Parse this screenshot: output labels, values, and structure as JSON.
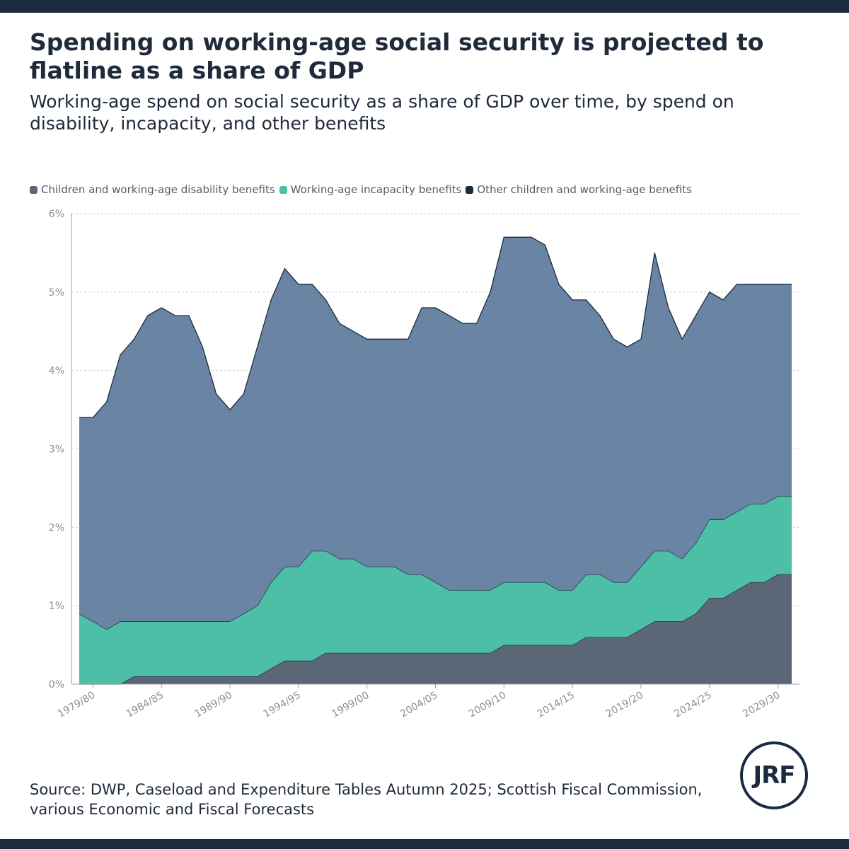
{
  "title": "Spending on working-age social security is projected to flatline as a share of GDP",
  "subtitle": "Working-age spend on social security as a share of GDP over time, by spend on disability, incapacity, and other benefits",
  "source": "Source: DWP, Caseload and Expenditure Tables Autumn 2025; Scottish Fiscal Commission, various Economic and Fiscal Forecasts",
  "logo_text": "JRF",
  "colors": {
    "frame": "#1b2a3f",
    "disability": "#5b6776",
    "incapacity": "#4dbfa6",
    "other": "#6a84a3"
  },
  "chart_data": {
    "type": "area",
    "stacked": true,
    "title": "Working-age spend on social security as a share of GDP over time",
    "xlabel": "",
    "ylabel": "",
    "ylim": [
      0,
      6
    ],
    "yticks": [
      0,
      1,
      2,
      3,
      4,
      5,
      6
    ],
    "ytick_suffix": "%",
    "grid": true,
    "legend_position": "top-left",
    "categories": [
      "1978/79",
      "1979/80",
      "1980/81",
      "1981/82",
      "1982/83",
      "1983/84",
      "1984/85",
      "1985/86",
      "1986/87",
      "1987/88",
      "1988/89",
      "1989/90",
      "1990/91",
      "1991/92",
      "1992/93",
      "1993/94",
      "1994/95",
      "1995/96",
      "1996/97",
      "1997/98",
      "1998/99",
      "1999/00",
      "2000/01",
      "2001/02",
      "2002/03",
      "2003/04",
      "2004/05",
      "2005/06",
      "2006/07",
      "2007/08",
      "2008/09",
      "2009/10",
      "2010/11",
      "2011/12",
      "2012/13",
      "2013/14",
      "2014/15",
      "2015/16",
      "2016/17",
      "2017/18",
      "2018/19",
      "2019/20",
      "2020/21",
      "2021/22",
      "2022/23",
      "2023/24",
      "2024/25",
      "2025/26",
      "2026/27",
      "2027/28",
      "2028/29",
      "2029/30",
      "2030/31"
    ],
    "xtick_labels": [
      "1979/80",
      "1984/85",
      "1989/90",
      "1994/95",
      "1999/00",
      "2004/05",
      "2009/10",
      "2014/15",
      "2019/20",
      "2024/25",
      "2029/30"
    ],
    "series": [
      {
        "name": "Children and working-age disability benefits",
        "values": [
          0,
          0,
          0,
          0,
          0.1,
          0.1,
          0.1,
          0.1,
          0.1,
          0.1,
          0.1,
          0.1,
          0.1,
          0.1,
          0.2,
          0.3,
          0.3,
          0.3,
          0.4,
          0.4,
          0.4,
          0.4,
          0.4,
          0.4,
          0.4,
          0.4,
          0.4,
          0.4,
          0.4,
          0.4,
          0.4,
          0.5,
          0.5,
          0.5,
          0.5,
          0.5,
          0.5,
          0.6,
          0.6,
          0.6,
          0.6,
          0.7,
          0.8,
          0.8,
          0.8,
          0.9,
          1.1,
          1.1,
          1.2,
          1.3,
          1.3,
          1.4,
          1.4
        ]
      },
      {
        "name": "Working-age incapacity benefits",
        "values": [
          0.9,
          0.8,
          0.7,
          0.8,
          0.7,
          0.7,
          0.7,
          0.7,
          0.7,
          0.7,
          0.7,
          0.7,
          0.8,
          0.9,
          1.1,
          1.2,
          1.2,
          1.4,
          1.3,
          1.2,
          1.2,
          1.1,
          1.1,
          1.1,
          1.0,
          1.0,
          0.9,
          0.8,
          0.8,
          0.8,
          0.8,
          0.8,
          0.8,
          0.8,
          0.8,
          0.7,
          0.7,
          0.8,
          0.8,
          0.7,
          0.7,
          0.8,
          0.9,
          0.9,
          0.8,
          0.9,
          1.0,
          1.0,
          1.0,
          1.0,
          1.0,
          1.0,
          1.0
        ]
      },
      {
        "name": "Other children and working-age benefits",
        "values": [
          2.5,
          2.6,
          2.9,
          3.4,
          3.6,
          3.9,
          4.0,
          3.9,
          3.9,
          3.5,
          2.9,
          2.7,
          2.8,
          3.3,
          3.6,
          3.8,
          3.6,
          3.4,
          3.2,
          3.0,
          2.9,
          2.9,
          2.9,
          2.9,
          3.0,
          3.4,
          3.5,
          3.5,
          3.4,
          3.4,
          3.8,
          4.4,
          4.4,
          4.4,
          4.3,
          3.9,
          3.7,
          3.5,
          3.3,
          3.1,
          3.0,
          2.9,
          3.8,
          3.1,
          2.8,
          2.9,
          2.9,
          2.8,
          2.9,
          2.8,
          2.8,
          2.7,
          2.7
        ]
      }
    ]
  }
}
